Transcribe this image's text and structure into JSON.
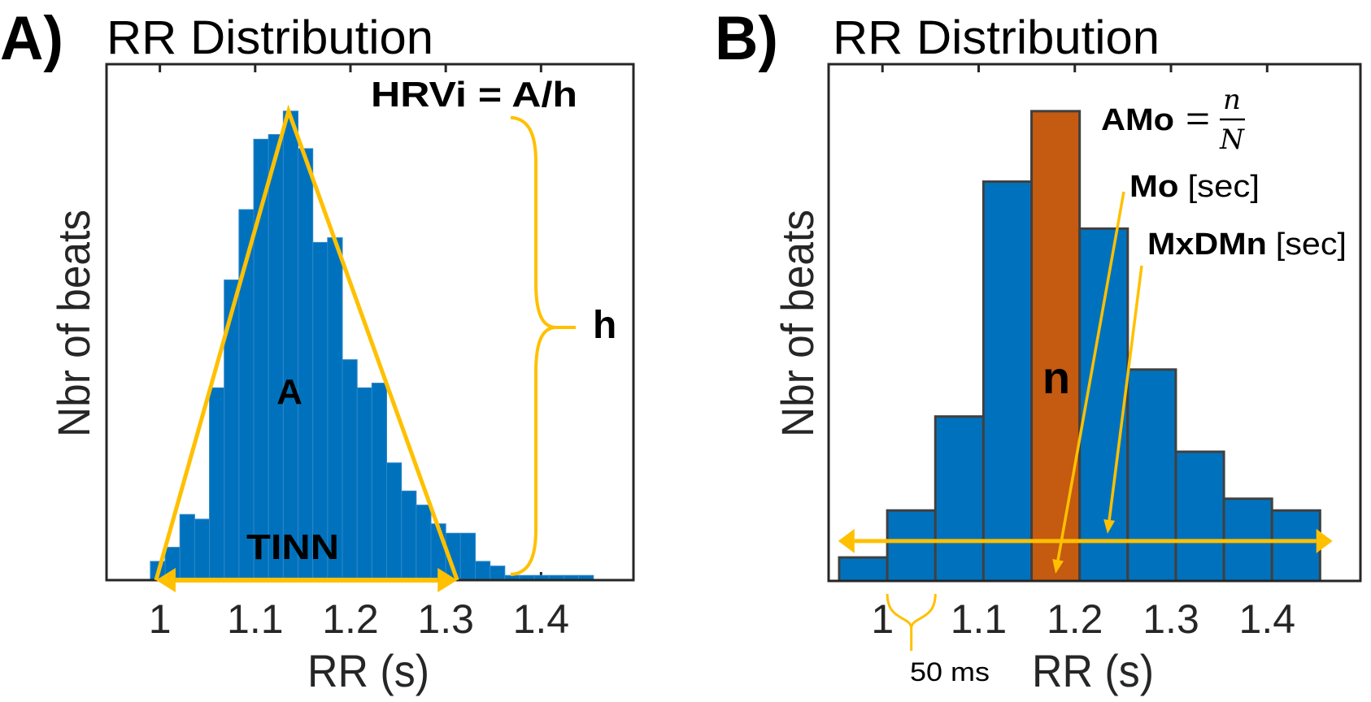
{
  "chart_data": [
    {
      "type": "bar",
      "panel_label": "A)",
      "title": "RR Distribution",
      "xlabel": "RR (s)",
      "ylabel": "Nbr of beats",
      "xlim": [
        0.944,
        1.497
      ],
      "ylim": [
        0,
        110
      ],
      "xticks": [
        1,
        1.1,
        1.2,
        1.3,
        1.4
      ],
      "xtick_labels": [
        "1",
        "1.1",
        "1.2",
        "1.3",
        "1.4"
      ],
      "grid": false,
      "bins": {
        "start": 0.99,
        "width": 0.0155,
        "counts": [
          4,
          7,
          14,
          13,
          41,
          64,
          79,
          94,
          95,
          100,
          92,
          72,
          73,
          47,
          41,
          42,
          25,
          19,
          16,
          12,
          10,
          10,
          4,
          3,
          1,
          1,
          1,
          1,
          1,
          1
        ]
      },
      "colors": {
        "bar": "#0072BD",
        "bar_edge": "#2F86C8",
        "annotation": "#FFC000",
        "axis": "#262626"
      },
      "annotations": {
        "formula": "HRVi = A/h",
        "area_label": "A",
        "height_label": "h",
        "base_label": "TINN",
        "triangle": {
          "left": 0.996,
          "apex_x": 1.135,
          "apex_y": 100,
          "right": 1.312
        }
      }
    },
    {
      "type": "bar",
      "panel_label": "B)",
      "title": "RR Distribution",
      "xlabel": "RR (s)",
      "ylabel": "Nbr of beats",
      "xlim": [
        0.944,
        1.497
      ],
      "ylim": [
        0,
        44
      ],
      "xticks": [
        1,
        1.1,
        1.2,
        1.3,
        1.4
      ],
      "xtick_labels": [
        "1",
        "1.1",
        "1.2",
        "1.3",
        "1.4"
      ],
      "grid": false,
      "bins": {
        "start": 0.955,
        "width": 0.05,
        "counts": [
          2,
          6,
          14,
          34,
          40,
          30,
          18,
          11,
          7,
          6
        ]
      },
      "mode_bin_index": 4,
      "colors": {
        "bar": "#0072BD",
        "mode_bar": "#C55A11",
        "bar_edge": "#404040",
        "annotation": "#FFC000",
        "axis": "#262626"
      },
      "annotations": {
        "amo_label": "AMo",
        "amo_equals": "=",
        "amo_numerator": "n",
        "amo_denominator": "N",
        "mode_bar_label": "n",
        "mo_label": "Mo",
        "mo_unit": "[sec]",
        "mxdmn_label": "MxDMn",
        "mxdmn_unit": "[sec]",
        "range_arrow": {
          "from": 0.954,
          "to": 1.468,
          "y": 3.4
        },
        "bin_width_label": "50 ms",
        "bin_width_brace_bin": 1
      }
    }
  ]
}
